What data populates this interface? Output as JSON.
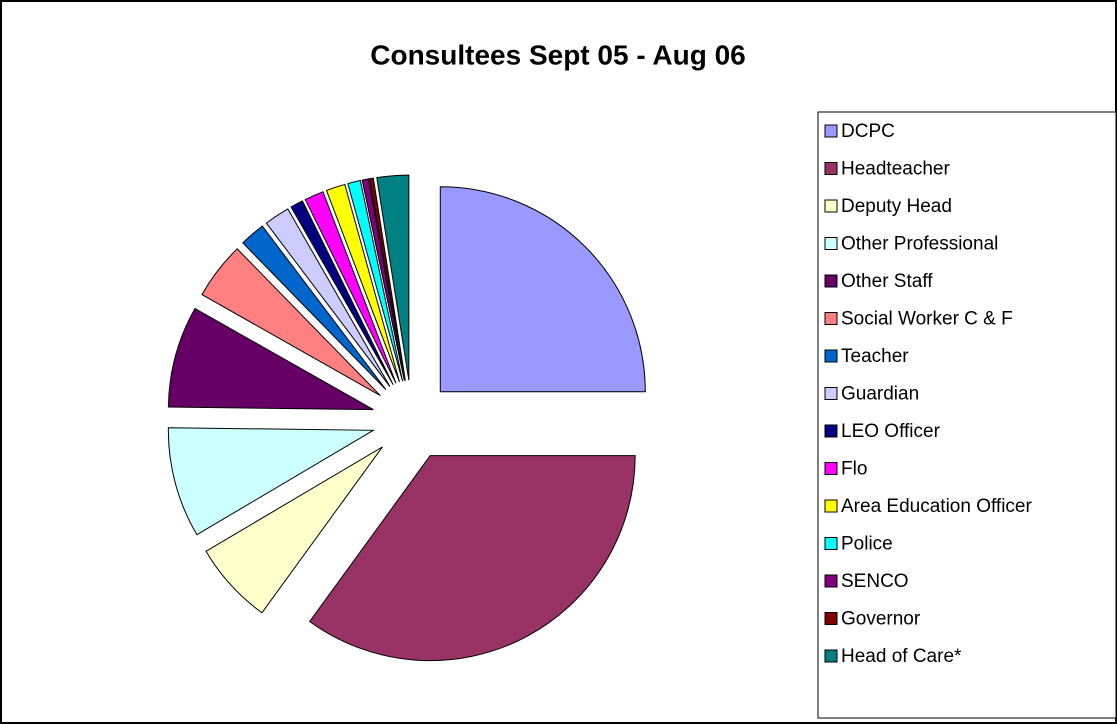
{
  "chart_data": {
    "type": "pie",
    "title": "Consultees Sept 05 - Aug 06",
    "categories": [
      "DCPC",
      "Headteacher",
      "Deputy Head",
      "Other Professional",
      "Other Staff",
      "Social Worker C & F",
      "Teacher",
      "Guardian",
      "LEO Officer",
      "Flo",
      "Area Education Officer",
      "Police",
      "SENCO",
      "Governor",
      "Head of Care*"
    ],
    "values": [
      25,
      35,
      6.5,
      8.7,
      8,
      4.5,
      2,
      2,
      1,
      1.5,
      1.5,
      1,
      0.5,
      0.3,
      2.5
    ],
    "colors": [
      "#9999ff",
      "#993366",
      "#ffffcc",
      "#ccffff",
      "#660066",
      "#ff8080",
      "#0066cc",
      "#ccccff",
      "#000080",
      "#ff00ff",
      "#ffff00",
      "#00ffff",
      "#800080",
      "#800000",
      "#008080"
    ],
    "legend": "right"
  }
}
